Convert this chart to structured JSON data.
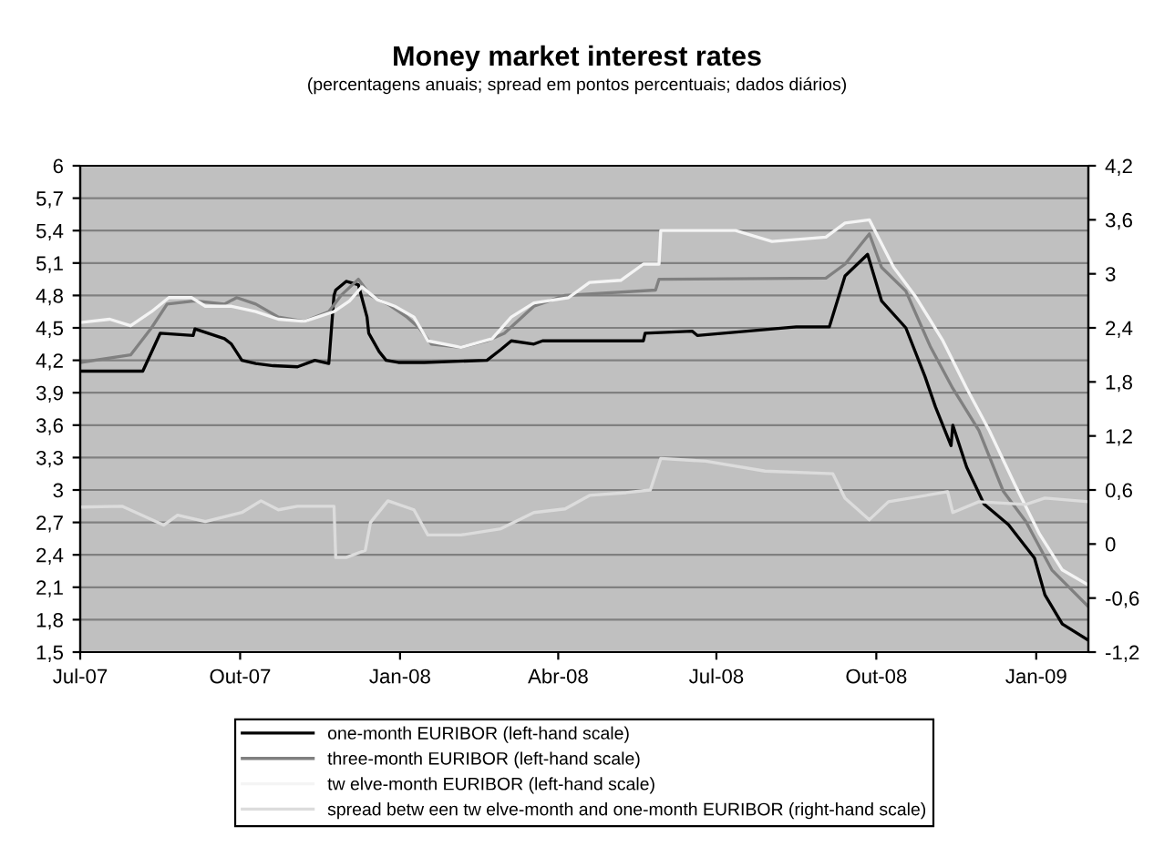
{
  "chart_data": {
    "type": "line",
    "title": "Money market interest rates",
    "subtitle": "(percentagens anuais; spread em pontos percentuais; dados diários)",
    "xlim": [
      "2007-07-01",
      "2009-01-31"
    ],
    "xticks": [
      {
        "value": "2007-07-01",
        "label": "Jul-07"
      },
      {
        "value": "2007-10-01",
        "label": "Out-07"
      },
      {
        "value": "2008-01-01",
        "label": "Jan-08"
      },
      {
        "value": "2008-04-01",
        "label": "Abr-08"
      },
      {
        "value": "2008-07-01",
        "label": "Jul-08"
      },
      {
        "value": "2008-10-01",
        "label": "Out-08"
      },
      {
        "value": "2009-01-01",
        "label": "Jan-09"
      }
    ],
    "ylim": [
      1.5,
      6
    ],
    "yticks": [
      {
        "value": 1.5,
        "label": "1,5"
      },
      {
        "value": 1.8,
        "label": "1,8"
      },
      {
        "value": 2.1,
        "label": "2,1"
      },
      {
        "value": 2.4,
        "label": "2,4"
      },
      {
        "value": 2.7,
        "label": "2,7"
      },
      3,
      {
        "value": 3.3,
        "label": "3,3"
      },
      {
        "value": 3.6,
        "label": "3,6"
      },
      {
        "value": 3.9,
        "label": "3,9"
      },
      {
        "value": 4.2,
        "label": "4,2"
      },
      {
        "value": 4.5,
        "label": "4,5"
      },
      {
        "value": 4.8,
        "label": "4,8"
      },
      {
        "value": 5.1,
        "label": "5,1"
      },
      {
        "value": 5.4,
        "label": "5,4"
      },
      {
        "value": 5.7,
        "label": "5,7"
      },
      6
    ],
    "y2lim": [
      -1.2,
      4.2
    ],
    "y2ticks": [
      {
        "value": -1.2,
        "label": "-1,2"
      },
      {
        "value": -0.6,
        "label": "-0,6"
      },
      0,
      {
        "value": 0.6,
        "label": "0,6"
      },
      {
        "value": 1.2,
        "label": "1,2"
      },
      {
        "value": 1.8,
        "label": "1,8"
      },
      {
        "value": 2.4,
        "label": "2,4"
      },
      3,
      {
        "value": 3.6,
        "label": "3,6"
      },
      {
        "value": 4.2,
        "label": "4,2"
      }
    ],
    "grid": "y",
    "legend": "bottom",
    "marker": "none",
    "line_style": "solid",
    "series": [
      {
        "name": "one-month EURIBOR (left-hand scale)",
        "color": "#000000",
        "x": [
          "2007-07-01",
          "2007-08-06",
          "2007-08-16",
          "2007-09-04",
          "2007-09-05",
          "2007-09-22",
          "2007-09-26",
          "2007-10-02",
          "2007-10-10",
          "2007-10-20",
          "2007-11-03",
          "2007-11-13",
          "2007-11-21",
          "2007-11-24",
          "2007-11-25",
          "2007-12-01",
          "2007-12-08",
          "2007-12-13",
          "2007-12-14",
          "2007-12-20",
          "2007-12-24",
          "2007-12-31",
          "2008-01-15",
          "2008-02-20",
          "2008-02-28",
          "2008-03-05",
          "2008-03-18",
          "2008-03-23",
          "2008-04-16",
          "2008-05-20",
          "2008-05-21",
          "2008-06-17",
          "2008-06-20",
          "2008-08-16",
          "2008-09-04",
          "2008-09-13",
          "2008-09-26",
          "2008-10-04",
          "2008-10-18",
          "2008-10-29",
          "2008-11-04",
          "2008-11-13",
          "2008-11-14",
          "2008-11-22",
          "2008-12-02",
          "2008-12-16",
          "2008-12-31",
          "2009-01-06",
          "2009-01-16",
          "2009-01-31"
        ],
        "values": [
          4.1,
          4.1,
          4.45,
          4.43,
          4.49,
          4.4,
          4.35,
          4.2,
          4.17,
          4.15,
          4.14,
          4.2,
          4.17,
          4.8,
          4.85,
          4.93,
          4.9,
          4.6,
          4.45,
          4.28,
          4.2,
          4.18,
          4.18,
          4.2,
          4.3,
          4.38,
          4.35,
          4.38,
          4.38,
          4.38,
          4.45,
          4.47,
          4.43,
          4.51,
          4.51,
          4.98,
          5.18,
          4.75,
          4.5,
          4.05,
          3.77,
          3.41,
          3.6,
          3.21,
          2.87,
          2.68,
          2.37,
          2.03,
          1.76,
          1.61
        ]
      },
      {
        "name": "three-month EURIBOR (left-hand scale)",
        "color": "#808080",
        "x": [
          "2007-07-01",
          "2007-07-30",
          "2007-08-11",
          "2007-08-20",
          "2007-09-05",
          "2007-09-22",
          "2007-09-29",
          "2007-10-10",
          "2007-10-23",
          "2007-11-07",
          "2007-11-21",
          "2007-11-28",
          "2007-12-08",
          "2007-12-15",
          "2007-12-25",
          "2008-01-05",
          "2008-01-12",
          "2008-01-19",
          "2008-02-05",
          "2008-02-20",
          "2008-03-01",
          "2008-03-18",
          "2008-04-05",
          "2008-05-27",
          "2008-05-29",
          "2008-09-02",
          "2008-09-13",
          "2008-09-27",
          "2008-10-04",
          "2008-10-18",
          "2008-11-01",
          "2008-11-14",
          "2008-11-29",
          "2008-12-13",
          "2008-12-26",
          "2009-01-10",
          "2009-01-31"
        ],
        "values": [
          4.18,
          4.25,
          4.5,
          4.72,
          4.75,
          4.72,
          4.78,
          4.72,
          4.6,
          4.56,
          4.65,
          4.8,
          4.95,
          4.8,
          4.72,
          4.6,
          4.5,
          4.35,
          4.32,
          4.38,
          4.45,
          4.7,
          4.8,
          4.85,
          4.95,
          4.96,
          5.09,
          5.37,
          5.06,
          4.84,
          4.33,
          3.94,
          3.55,
          2.99,
          2.71,
          2.26,
          1.92
        ]
      },
      {
        "name": "tw elve-month EURIBOR (left-hand scale)",
        "color": "#f4f4f4",
        "x": [
          "2007-07-01",
          "2007-07-18",
          "2007-07-30",
          "2007-08-11",
          "2007-08-21",
          "2007-09-03",
          "2007-09-11",
          "2007-09-26",
          "2007-10-10",
          "2007-10-23",
          "2007-11-07",
          "2007-11-24",
          "2007-12-03",
          "2007-12-10",
          "2007-12-19",
          "2007-12-29",
          "2008-01-09",
          "2008-01-17",
          "2008-02-05",
          "2008-02-23",
          "2008-03-05",
          "2008-03-18",
          "2008-04-07",
          "2008-04-19",
          "2008-05-07",
          "2008-05-20",
          "2008-05-29",
          "2008-05-30",
          "2008-06-14",
          "2008-07-12",
          "2008-08-02",
          "2008-09-02",
          "2008-09-13",
          "2008-09-27",
          "2008-10-11",
          "2008-10-24",
          "2008-11-08",
          "2008-11-22",
          "2008-12-05",
          "2008-12-20",
          "2009-01-03",
          "2009-01-16",
          "2009-01-31"
        ],
        "values": [
          4.55,
          4.58,
          4.52,
          4.65,
          4.78,
          4.78,
          4.7,
          4.7,
          4.65,
          4.58,
          4.56,
          4.65,
          4.75,
          4.88,
          4.76,
          4.7,
          4.6,
          4.38,
          4.32,
          4.4,
          4.6,
          4.73,
          4.78,
          4.92,
          4.94,
          5.09,
          5.09,
          5.4,
          5.4,
          5.4,
          5.3,
          5.34,
          5.47,
          5.5,
          5.06,
          4.78,
          4.39,
          3.94,
          3.55,
          3.04,
          2.59,
          2.26,
          2.12
        ]
      },
      {
        "name": "spread betw een tw elve-month and one-month EURIBOR (right-hand scale)",
        "color": "#dcdcdc",
        "axis": "y2",
        "x": [
          "2007-07-01",
          "2007-07-25",
          "2007-08-18",
          "2007-08-26",
          "2007-09-11",
          "2007-10-02",
          "2007-10-13",
          "2007-10-23",
          "2007-11-03",
          "2007-11-24",
          "2007-11-25",
          "2007-12-01",
          "2007-12-12",
          "2007-12-15",
          "2007-12-25",
          "2008-01-09",
          "2008-01-17",
          "2008-02-05",
          "2008-02-28",
          "2008-03-18",
          "2008-04-05",
          "2008-04-19",
          "2008-05-10",
          "2008-05-24",
          "2008-05-30",
          "2008-06-25",
          "2008-07-29",
          "2008-09-06",
          "2008-09-13",
          "2008-09-27",
          "2008-10-08",
          "2008-11-11",
          "2008-11-14",
          "2008-11-29",
          "2008-12-26",
          "2009-01-06",
          "2009-01-31"
        ],
        "values": [
          0.41,
          0.42,
          0.21,
          0.32,
          0.25,
          0.35,
          0.48,
          0.38,
          0.42,
          0.42,
          -0.15,
          -0.15,
          -0.07,
          0.24,
          0.48,
          0.38,
          0.1,
          0.1,
          0.17,
          0.35,
          0.39,
          0.54,
          0.57,
          0.6,
          0.95,
          0.92,
          0.81,
          0.78,
          0.51,
          0.27,
          0.47,
          0.58,
          0.35,
          0.47,
          0.44,
          0.51,
          0.47
        ]
      }
    ]
  }
}
